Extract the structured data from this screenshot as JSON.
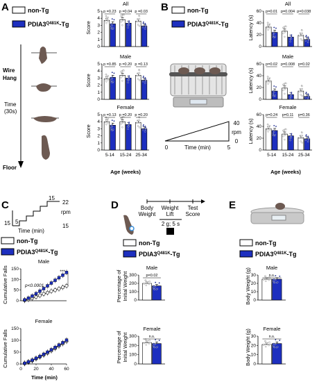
{
  "colors": {
    "tg": "#1d2fbf",
    "nontg": "#ffffff",
    "stroke": "#000000"
  },
  "legend": {
    "nontg": "non-Tg",
    "tg": "PDIA3",
    "tg_sup": "Q481K",
    "tg_suffix": "-Tg"
  },
  "panels": {
    "a": "A",
    "b": "B",
    "c": "C",
    "d": "D",
    "e": "E"
  },
  "panel_a": {
    "labels": {
      "wire_hang_1": "Wire",
      "wire_hang_2": "Hang",
      "time_1": "Time",
      "time_2": "(30s)",
      "floor": "Floor"
    },
    "titles": [
      "All",
      "Male",
      "Female"
    ],
    "ylabel": "Score",
    "yticks": [
      "0",
      "1",
      "2",
      "3",
      "4",
      "5"
    ],
    "xlabel": "Age (weeks)",
    "categories": [
      "5-14",
      "15-24",
      "25-34"
    ],
    "pvalues": [
      [
        "p =0.23",
        "p =0.04",
        "p =0.03"
      ],
      [
        "p =0.85",
        "p =0.20",
        "p =0.13"
      ],
      [
        "p =0.13",
        "p =0.20",
        "p =0.20"
      ]
    ]
  },
  "panel_b": {
    "ramp": {
      "rpm_top": "40",
      "rpm": "rpm",
      "rpm_bottom": "0",
      "x0": "0",
      "xlabel": "Time (min)",
      "x5": "5"
    },
    "titles": [
      "All",
      "Male",
      "Female"
    ],
    "ylabel": "Latency (s)",
    "yticks": [
      "0",
      "20",
      "40",
      "60"
    ],
    "xlabel": "Age (weeks)",
    "categories": [
      "5-14",
      "15-24",
      "25-34"
    ],
    "pvalues": [
      [
        "p=0.01",
        "p=0.004",
        "p=0.038"
      ],
      [
        "p=0.02",
        "p=0.008",
        "p=0.02"
      ],
      [
        "p=0.24",
        "p=0.11",
        "p=0.36"
      ]
    ]
  },
  "panel_c": {
    "protocol": {
      "step15a": "15",
      "step5": "5",
      "step15b": "15",
      "rpm22": "22",
      "rpm": "rpm",
      "time": "Time (min)",
      "rpm15": "15"
    },
    "titles": [
      "Male",
      "Female"
    ],
    "ylabel": "Cumulative Falls",
    "yticks": [
      "0",
      "50",
      "100",
      "150"
    ],
    "xticks": [
      "0",
      "20",
      "40",
      "60"
    ],
    "xlabel": "Time (min)",
    "pvalue": "p<0.0001",
    "stars": "***"
  },
  "panel_d": {
    "timeline": [
      "Body",
      "Weight",
      "Weight",
      "Lift",
      "Test",
      "Score"
    ],
    "weight_note": "2 g; 5 s",
    "titles": [
      "Male",
      "Female"
    ],
    "ylabel_1": "Percentage of",
    "ylabel_2": "Initial Weight",
    "yticks": [
      "0",
      "100",
      "200",
      "300"
    ],
    "pvalues": [
      "p=0.02",
      "n.s."
    ]
  },
  "panel_e": {
    "titles": [
      "Male",
      "Female"
    ],
    "ylabel": "Body Weight (g)",
    "yticks": [
      "0",
      "10",
      "20",
      "30"
    ],
    "pvalues": [
      "n.s.",
      "n.s."
    ]
  },
  "chart_data": [
    {
      "type": "bar",
      "title": "All",
      "ylabel": "Score",
      "categories": [
        "5-14",
        "15-24",
        "25-34"
      ],
      "ylim": [
        0,
        5
      ],
      "series": [
        {
          "name": "non-Tg",
          "values": [
            3.7,
            3.8,
            3.6
          ]
        },
        {
          "name": "PDIA3Q481K-Tg",
          "values": [
            3.2,
            3.3,
            2.9
          ]
        }
      ]
    },
    {
      "type": "bar",
      "title": "Male",
      "ylabel": "Score",
      "categories": [
        "5-14",
        "15-24",
        "25-34"
      ],
      "ylim": [
        0,
        5
      ],
      "series": [
        {
          "name": "non-Tg",
          "values": [
            2.9,
            3.4,
            3.4
          ]
        },
        {
          "name": "PDIA3Q481K-Tg",
          "values": [
            3.1,
            3.0,
            2.7
          ]
        }
      ]
    },
    {
      "type": "bar",
      "title": "Female",
      "ylabel": "Score",
      "categories": [
        "5-14",
        "15-24",
        "25-34"
      ],
      "ylim": [
        0,
        5
      ],
      "series": [
        {
          "name": "non-Tg",
          "values": [
            4.0,
            4.0,
            3.9
          ]
        },
        {
          "name": "PDIA3Q481K-Tg",
          "values": [
            3.5,
            3.6,
            3.0
          ]
        }
      ]
    },
    {
      "type": "bar",
      "title": "All",
      "ylabel": "Latency (s)",
      "categories": [
        "5-14",
        "15-24",
        "25-34"
      ],
      "ylim": [
        0,
        60
      ],
      "series": [
        {
          "name": "non-Tg",
          "values": [
            33,
            26,
            19
          ]
        },
        {
          "name": "PDIA3Q481K-Tg",
          "values": [
            24,
            16,
            12
          ]
        }
      ]
    },
    {
      "type": "bar",
      "title": "Male",
      "ylabel": "Latency (s)",
      "categories": [
        "5-14",
        "15-24",
        "25-34"
      ],
      "ylim": [
        0,
        60
      ],
      "series": [
        {
          "name": "non-Tg",
          "values": [
            31,
            19,
            14
          ]
        },
        {
          "name": "PDIA3Q481K-Tg",
          "values": [
            14,
            8,
            5
          ]
        }
      ]
    },
    {
      "type": "bar",
      "title": "Female",
      "ylabel": "Latency (s)",
      "categories": [
        "5-14",
        "15-24",
        "25-34"
      ],
      "ylim": [
        0,
        60
      ],
      "series": [
        {
          "name": "non-Tg",
          "values": [
            36,
            27,
            21
          ]
        },
        {
          "name": "PDIA3Q481K-Tg",
          "values": [
            33,
            24,
            19
          ]
        }
      ]
    },
    {
      "type": "line",
      "title": "Male",
      "xlabel": "Time (min)",
      "ylabel": "Cumulative Falls",
      "ylim": [
        0,
        150
      ],
      "x": [
        5,
        10,
        15,
        20,
        25,
        30,
        35,
        40,
        45,
        50,
        55,
        60
      ],
      "series": [
        {
          "name": "non-Tg",
          "values": [
            2,
            6,
            12,
            18,
            25,
            32,
            38,
            45,
            50,
            56,
            63,
            70
          ]
        },
        {
          "name": "PDIA3Q481K-Tg",
          "values": [
            4,
            12,
            22,
            33,
            45,
            57,
            70,
            83,
            96,
            108,
            120,
            133
          ]
        }
      ]
    },
    {
      "type": "line",
      "title": "Female",
      "xlabel": "Time (min)",
      "ylabel": "Cumulative Falls",
      "ylim": [
        0,
        150
      ],
      "x": [
        5,
        10,
        15,
        20,
        25,
        30,
        35,
        40,
        45,
        50,
        55,
        60
      ],
      "series": [
        {
          "name": "non-Tg",
          "values": [
            2,
            8,
            14,
            22,
            30,
            38,
            46,
            56,
            66,
            76,
            86,
            96
          ]
        },
        {
          "name": "PDIA3Q481K-Tg",
          "values": [
            3,
            9,
            16,
            24,
            32,
            41,
            50,
            60,
            70,
            80,
            90,
            101
          ]
        }
      ]
    },
    {
      "type": "bar",
      "title": "Male",
      "ylabel": "Percentage of Initial Weight",
      "ylim": [
        0,
        300
      ],
      "series": [
        {
          "name": "non-Tg",
          "values": [
            200
          ]
        },
        {
          "name": "PDIA3Q481K-Tg",
          "values": [
            170
          ]
        }
      ]
    },
    {
      "type": "bar",
      "title": "Female",
      "ylabel": "Percentage of Initial Weight",
      "ylim": [
        0,
        300
      ],
      "series": [
        {
          "name": "non-Tg",
          "values": [
            230
          ]
        },
        {
          "name": "PDIA3Q481K-Tg",
          "values": [
            220
          ]
        }
      ]
    },
    {
      "type": "bar",
      "title": "Male",
      "ylabel": "Body Weight (g)",
      "ylim": [
        0,
        30
      ],
      "series": [
        {
          "name": "non-Tg",
          "values": [
            25
          ]
        },
        {
          "name": "PDIA3Q481K-Tg",
          "values": [
            25
          ]
        }
      ]
    },
    {
      "type": "bar",
      "title": "Female",
      "ylabel": "Body Weight (g)",
      "ylim": [
        0,
        30
      ],
      "series": [
        {
          "name": "non-Tg",
          "values": [
            21
          ]
        },
        {
          "name": "PDIA3Q481K-Tg",
          "values": [
            22
          ]
        }
      ]
    }
  ]
}
